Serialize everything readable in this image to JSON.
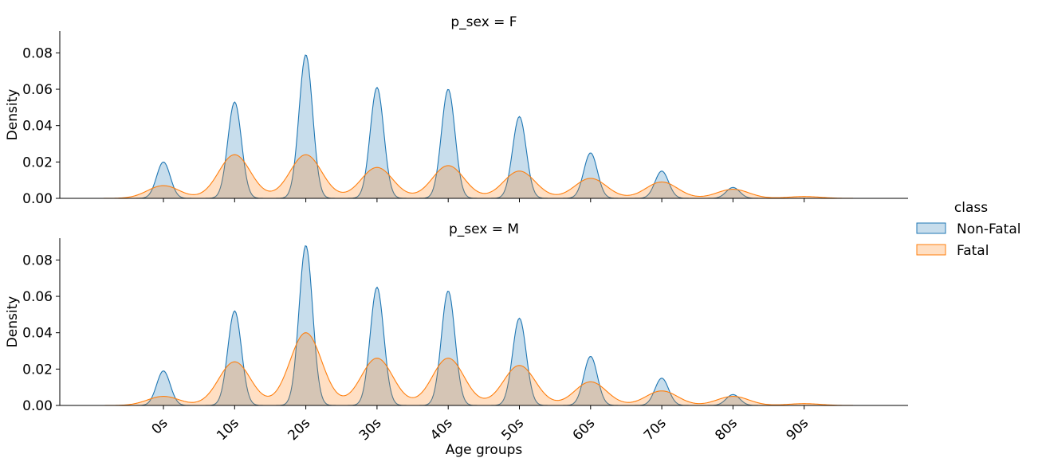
{
  "chart_data": {
    "type": "area",
    "chart_kind": "kde",
    "xlabel": "Age groups",
    "ylabel": "Density",
    "categories": [
      "0s",
      "10s",
      "20s",
      "30s",
      "40s",
      "50s",
      "60s",
      "70s",
      "80s",
      "90s"
    ],
    "ylim": [
      0,
      0.092
    ],
    "yticks": [
      "0.00",
      "0.02",
      "0.04",
      "0.06",
      "0.08"
    ],
    "ytick_values": [
      0,
      0.02,
      0.04,
      0.06,
      0.08
    ],
    "grid": false,
    "legend": {
      "title": "class",
      "placement": "right",
      "entries": [
        "Non-Fatal",
        "Fatal"
      ]
    },
    "colors": {
      "Non-Fatal": "#1f77b4",
      "Fatal": "#ff7f0e"
    },
    "panels": [
      {
        "title": "p_sex = F",
        "series": [
          {
            "name": "Non-Fatal",
            "values": [
              0.02,
              0.053,
              0.079,
              0.061,
              0.06,
              0.045,
              0.025,
              0.015,
              0.006,
              0.0
            ]
          },
          {
            "name": "Fatal",
            "values": [
              0.007,
              0.024,
              0.024,
              0.017,
              0.018,
              0.015,
              0.011,
              0.009,
              0.005,
              0.001
            ]
          }
        ]
      },
      {
        "title": "p_sex = M",
        "series": [
          {
            "name": "Non-Fatal",
            "values": [
              0.019,
              0.052,
              0.088,
              0.065,
              0.063,
              0.048,
              0.027,
              0.015,
              0.006,
              0.0
            ]
          },
          {
            "name": "Fatal",
            "values": [
              0.005,
              0.024,
              0.04,
              0.026,
              0.026,
              0.022,
              0.013,
              0.008,
              0.005,
              0.001
            ]
          }
        ]
      }
    ]
  }
}
